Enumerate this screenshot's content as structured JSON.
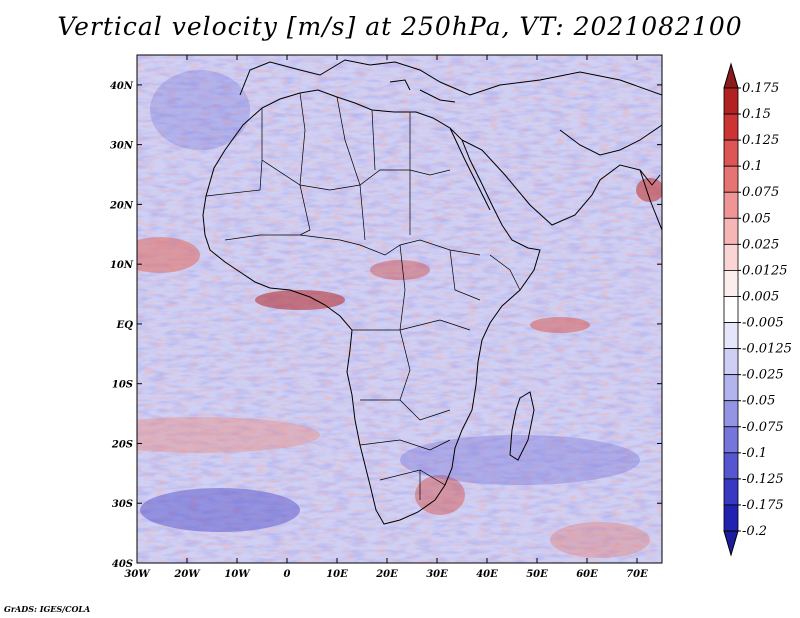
{
  "title": "Vertical velocity [m/s] at 250hPa, VT: 2021082100",
  "credit": "GrADS: IGES/COLA",
  "map": {
    "lon_range": [
      -30,
      75
    ],
    "lat_range": [
      -40,
      45
    ],
    "lat_ticks": [
      {
        "lat": 40,
        "label": "40N"
      },
      {
        "lat": 30,
        "label": "30N"
      },
      {
        "lat": 20,
        "label": "20N"
      },
      {
        "lat": 10,
        "label": "10N"
      },
      {
        "lat": 0,
        "label": "EQ"
      },
      {
        "lat": -10,
        "label": "10S"
      },
      {
        "lat": -20,
        "label": "20S"
      },
      {
        "lat": -30,
        "label": "30S"
      },
      {
        "lat": -40,
        "label": "40S"
      }
    ],
    "lon_ticks": [
      {
        "lon": -30,
        "label": "30W"
      },
      {
        "lon": -20,
        "label": "20W"
      },
      {
        "lon": -10,
        "label": "10W"
      },
      {
        "lon": 0,
        "label": "0"
      },
      {
        "lon": 10,
        "label": "10E"
      },
      {
        "lon": 20,
        "label": "20E"
      },
      {
        "lon": 30,
        "label": "30E"
      },
      {
        "lon": 40,
        "label": "40E"
      },
      {
        "lon": 50,
        "label": "50E"
      },
      {
        "lon": 60,
        "label": "60E"
      },
      {
        "lon": 70,
        "label": "70E"
      }
    ],
    "field_note_colors": {
      "positive": "#e36a5f",
      "negative": "#5a57d6",
      "neutral": "#ffffff"
    }
  },
  "colorbar": {
    "levels": [
      {
        "label": "0.175",
        "color": "#8b1a1a"
      },
      {
        "label": "0.15",
        "color": "#b22222"
      },
      {
        "label": "0.125",
        "color": "#cc3333"
      },
      {
        "label": "0.1",
        "color": "#dd5555"
      },
      {
        "label": "0.075",
        "color": "#e87373"
      },
      {
        "label": "0.05",
        "color": "#f09595"
      },
      {
        "label": "0.025",
        "color": "#f6b6b6"
      },
      {
        "label": "0.0125",
        "color": "#fad5d5"
      },
      {
        "label": "0.005",
        "color": "#fdeeee"
      },
      {
        "label": "-0.005",
        "color": "#ffffff"
      },
      {
        "label": "-0.0125",
        "color": "#e6e6fb"
      },
      {
        "label": "-0.025",
        "color": "#cfcff5"
      },
      {
        "label": "-0.05",
        "color": "#b3b3ee"
      },
      {
        "label": "-0.075",
        "color": "#9494e5"
      },
      {
        "label": "-0.1",
        "color": "#7575db"
      },
      {
        "label": "-0.125",
        "color": "#5656d0"
      },
      {
        "label": "-0.175",
        "color": "#3838c2"
      },
      {
        "label": "-0.2",
        "color": "#2222b0"
      }
    ],
    "bottom_color": "#1c1c9e"
  }
}
